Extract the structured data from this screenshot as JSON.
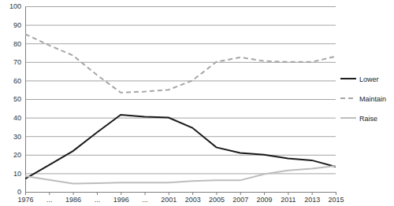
{
  "chart_data": {
    "type": "line",
    "categories": [
      "1976",
      "...",
      "1986",
      "...",
      "1996",
      "...",
      "2001",
      "2003",
      "2005",
      "2007",
      "2009",
      "2011",
      "2013",
      "2015"
    ],
    "series": [
      {
        "name": "Lower",
        "color": "#1a1a1a",
        "line_style": "solid",
        "values": [
          7,
          14.5,
          22,
          32,
          41.5,
          40.5,
          40,
          34.5,
          24,
          21,
          20,
          18,
          17,
          13.5
        ]
      },
      {
        "name": "Maintain",
        "color": "#a6a6a6",
        "line_style": "dashed",
        "values": [
          85,
          79,
          73.5,
          63,
          53.5,
          54,
          55,
          60,
          70,
          72.5,
          70.5,
          70,
          70,
          73
        ]
      },
      {
        "name": "Raise",
        "color": "#bdbdbd",
        "line_style": "solid",
        "values": [
          8.5,
          6.5,
          4.5,
          4.7,
          5,
          5,
          5,
          5.8,
          6.3,
          6.2,
          9.5,
          11.5,
          12.5,
          14
        ]
      }
    ],
    "ylim": [
      0,
      100
    ],
    "yticks": [
      0,
      10,
      20,
      30,
      40,
      50,
      60,
      70,
      80,
      90,
      100
    ],
    "grid": true,
    "legend": "right"
  }
}
